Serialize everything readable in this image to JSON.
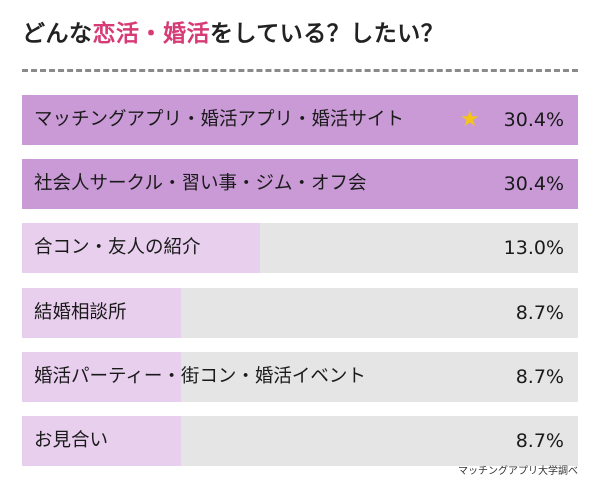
{
  "title": {
    "part1": "どんな",
    "accent": "恋活・婚活",
    "part2": "をしている？したい？"
  },
  "source": "マッチングアプリ大学調べ",
  "colors": {
    "accent": "#d63b75",
    "fill_strong": "#c99ad6",
    "fill_light": "#e8cfee",
    "track": "#e5e5e5",
    "star": "#f4c419"
  },
  "chart_data": {
    "type": "bar",
    "orientation": "horizontal",
    "title": "どんな恋活・婚活をしている？したい？",
    "categories": [
      "マッチングアプリ・婚活アプリ・婚活サイト",
      "社会人サークル・習い事・ジム・オフ会",
      "合コン・友人の紹介",
      "結婚相談所",
      "婚活パーティー・街コン・婚活イベント",
      "お見合い"
    ],
    "values": [
      30.4,
      30.4,
      13.0,
      8.7,
      8.7,
      8.7
    ],
    "value_labels": [
      "30.4%",
      "30.4%",
      "13.0%",
      "8.7%",
      "8.7%",
      "8.7%"
    ],
    "xlim": [
      0,
      30.4
    ],
    "star_on": 0,
    "grid": false
  }
}
